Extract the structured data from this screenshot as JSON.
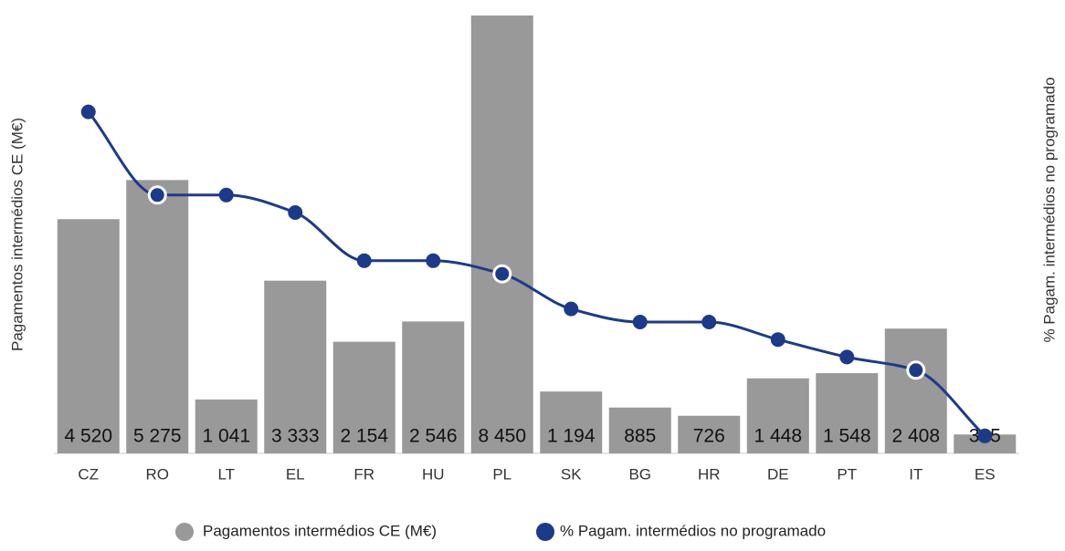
{
  "chart_data": {
    "type": "bar_line",
    "y_label": "Pagamentos intermédios CE (M€)",
    "y2_label": "% Pagam. intermédios no programado",
    "categories": [
      "CZ",
      "RO",
      "LT",
      "EL",
      "FR",
      "HU",
      "PL",
      "SK",
      "BG",
      "HR",
      "DE",
      "PT",
      "IT",
      "ES"
    ],
    "series": [
      {
        "name": "Pagamentos intermédios CE (M€)",
        "color": "#999999",
        "kind": "bar",
        "values": [
          4520,
          5275,
          1041,
          3333,
          2154,
          2546,
          8450,
          1194,
          885,
          726,
          1448,
          1548,
          2408,
          365
        ],
        "value_labels": [
          "4 520",
          "5 275",
          "1 041",
          "3 333",
          "2 154",
          "2 546",
          "8 450",
          "1 194",
          "885",
          "726",
          "1 448",
          "1 548",
          "2 408",
          "365"
        ]
      },
      {
        "name": "% Pagam. intermédios no programado",
        "color": "#1d3a8a",
        "kind": "line",
        "axis": "y2",
        "values": [
          78,
          59,
          59,
          55,
          44,
          44,
          41,
          33,
          30,
          30,
          26,
          22,
          19,
          4
        ],
        "highlighted_points": [
          1,
          6,
          12
        ]
      }
    ],
    "ylim": [
      0,
      8450
    ],
    "y2lim": [
      0,
      100
    ],
    "legend": "bottom"
  }
}
